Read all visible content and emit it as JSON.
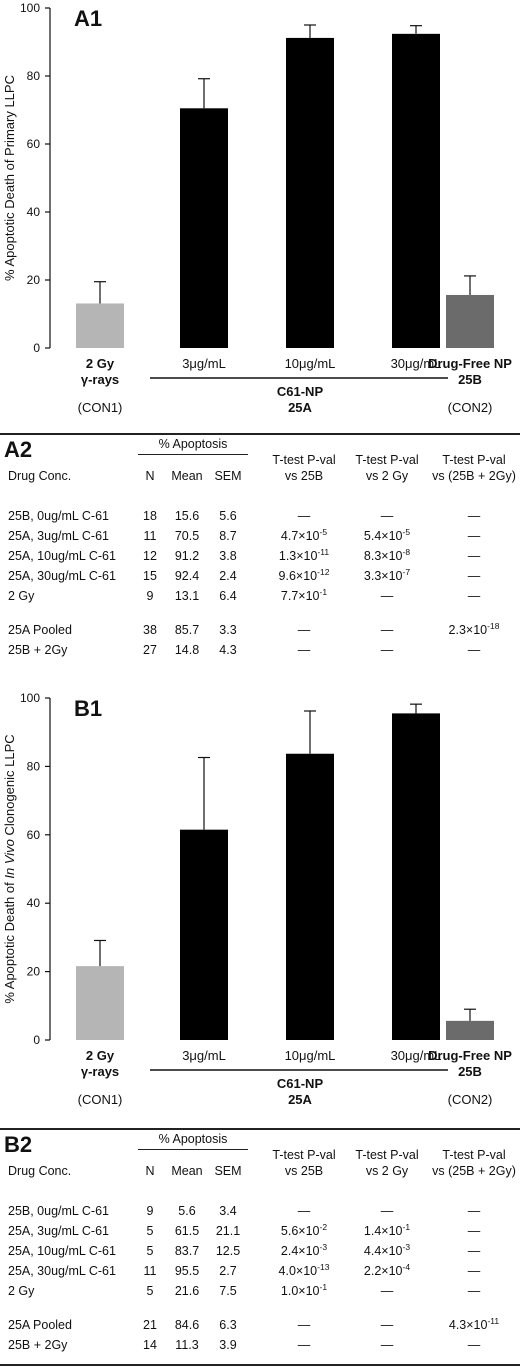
{
  "chart_data": [
    {
      "type": "bar",
      "panel_label": "A1",
      "ylabel": "% Apoptotic Death of Primary LLPC",
      "ylim": [
        0,
        100
      ],
      "yticks": [
        "0",
        "20",
        "40",
        "60",
        "80",
        "100"
      ],
      "categories": [
        "2 Gy γ-rays",
        "3μg/mL",
        "10μg/mL",
        "30μg/mL",
        "Drug-Free NP 25B"
      ],
      "values": [
        13.1,
        70.5,
        91.2,
        92.4,
        15.6
      ],
      "errors": [
        6.4,
        8.7,
        3.8,
        2.4,
        5.6
      ],
      "colors": [
        "#b5b5b5",
        "#000000",
        "#000000",
        "#000000",
        "#6b6b6b"
      ],
      "labels": {
        "left_bold_1": "2 Gy",
        "left_bold_2": "γ-rays",
        "left_sub": "(CON1)",
        "mid_1": "3μg/mL",
        "mid_2": "10μg/mL",
        "mid_3": "30μg/mL",
        "group_1": "C61-NP",
        "group_2": "25A",
        "right_bold_1": "Drug-Free NP",
        "right_bold_2": "25B",
        "right_sub": "(CON2)"
      }
    },
    {
      "type": "bar",
      "panel_label": "B1",
      "ylabel_pre": "% Apoptotic Death of ",
      "ylabel_italic": "In Vivo",
      "ylabel_post": " Clonogenic LLPC",
      "ylim": [
        0,
        100
      ],
      "yticks": [
        "0",
        "20",
        "40",
        "60",
        "80",
        "100"
      ],
      "categories": [
        "2 Gy γ-rays",
        "3μg/mL",
        "10μg/mL",
        "30μg/mL",
        "Drug-Free NP 25B"
      ],
      "values": [
        21.6,
        61.5,
        83.7,
        95.5,
        5.6
      ],
      "errors": [
        7.5,
        21.1,
        12.5,
        2.7,
        3.4
      ],
      "colors": [
        "#b5b5b5",
        "#000000",
        "#000000",
        "#000000",
        "#6b6b6b"
      ],
      "labels": {
        "left_bold_1": "2 Gy",
        "left_bold_2": "γ-rays",
        "left_sub": "(CON1)",
        "mid_1": "3μg/mL",
        "mid_2": "10μg/mL",
        "mid_3": "30μg/mL",
        "group_1": "C61-NP",
        "group_2": "25A",
        "right_bold_1": "Drug-Free NP",
        "right_bold_2": "25B",
        "right_sub": "(CON2)"
      }
    }
  ],
  "tables": [
    {
      "panel_label": "A2",
      "header": {
        "drug": "Drug Conc.",
        "apoptosis": "% Apoptosis",
        "n": "N",
        "mean": "Mean",
        "sem": "SEM",
        "t1a": "T-test P-val",
        "t1b": "vs 25B",
        "t2a": "T-test P-val",
        "t2b": "vs 2 Gy",
        "t3a": "T-test P-val",
        "t3b": "vs (25B + 2Gy)"
      },
      "rows": [
        {
          "drug": "25B, 0ug/mL C-61",
          "n": "18",
          "mean": "15.6",
          "sem": "5.6",
          "p1": "—",
          "p1e": "",
          "p2": "—",
          "p2e": "",
          "p3": "—",
          "p3e": ""
        },
        {
          "drug": "25A, 3ug/mL C-61",
          "n": "11",
          "mean": "70.5",
          "sem": "8.7",
          "p1": "4.7×10",
          "p1e": "-5",
          "p2": "5.4×10",
          "p2e": "-5",
          "p3": "—",
          "p3e": ""
        },
        {
          "drug": "25A, 10ug/mL C-61",
          "n": "12",
          "mean": "91.2",
          "sem": "3.8",
          "p1": "1.3×10",
          "p1e": "-11",
          "p2": "8.3×10",
          "p2e": "-8",
          "p3": "—",
          "p3e": ""
        },
        {
          "drug": "25A, 30ug/mL C-61",
          "n": "15",
          "mean": "92.4",
          "sem": "2.4",
          "p1": "9.6×10",
          "p1e": "-12",
          "p2": "3.3×10",
          "p2e": "-7",
          "p3": "—",
          "p3e": ""
        },
        {
          "drug": "2 Gy",
          "n": "9",
          "mean": "13.1",
          "sem": "6.4",
          "p1": "7.7×10",
          "p1e": "-1",
          "p2": "—",
          "p2e": "",
          "p3": "—",
          "p3e": ""
        },
        {
          "drug": "25A Pooled",
          "n": "38",
          "mean": "85.7",
          "sem": "3.3",
          "p1": "—",
          "p1e": "",
          "p2": "—",
          "p2e": "",
          "p3": "2.3×10",
          "p3e": "-18"
        },
        {
          "drug": "25B + 2Gy",
          "n": "27",
          "mean": "14.8",
          "sem": "4.3",
          "p1": "—",
          "p1e": "",
          "p2": "—",
          "p2e": "",
          "p3": "—",
          "p3e": ""
        }
      ]
    },
    {
      "panel_label": "B2",
      "header": {
        "drug": "Drug Conc.",
        "apoptosis": "% Apoptosis",
        "n": "N",
        "mean": "Mean",
        "sem": "SEM",
        "t1a": "T-test P-val",
        "t1b": "vs 25B",
        "t2a": "T-test P-val",
        "t2b": "vs 2 Gy",
        "t3a": "T-test P-val",
        "t3b": "vs (25B + 2Gy)"
      },
      "rows": [
        {
          "drug": "25B, 0ug/mL C-61",
          "n": "9",
          "mean": "5.6",
          "sem": "3.4",
          "p1": "—",
          "p1e": "",
          "p2": "—",
          "p2e": "",
          "p3": "—",
          "p3e": ""
        },
        {
          "drug": "25A, 3ug/mL C-61",
          "n": "5",
          "mean": "61.5",
          "sem": "21.1",
          "p1": "5.6×10",
          "p1e": "-2",
          "p2": "1.4×10",
          "p2e": "-1",
          "p3": "—",
          "p3e": ""
        },
        {
          "drug": "25A, 10ug/mL C-61",
          "n": "5",
          "mean": "83.7",
          "sem": "12.5",
          "p1": "2.4×10",
          "p1e": "-3",
          "p2": "4.4×10",
          "p2e": "-3",
          "p3": "—",
          "p3e": ""
        },
        {
          "drug": "25A, 30ug/mL C-61",
          "n": "11",
          "mean": "95.5",
          "sem": "2.7",
          "p1": "4.0×10",
          "p1e": "-13",
          "p2": "2.2×10",
          "p2e": "-4",
          "p3": "—",
          "p3e": ""
        },
        {
          "drug": "2 Gy",
          "n": "5",
          "mean": "21.6",
          "sem": "7.5",
          "p1": "1.0×10",
          "p1e": "-1",
          "p2": "—",
          "p2e": "",
          "p3": "—",
          "p3e": ""
        },
        {
          "drug": "25A Pooled",
          "n": "21",
          "mean": "84.6",
          "sem": "6.3",
          "p1": "—",
          "p1e": "",
          "p2": "—",
          "p2e": "",
          "p3": "4.3×10",
          "p3e": "-11"
        },
        {
          "drug": "25B + 2Gy",
          "n": "14",
          "mean": "11.3",
          "sem": "3.9",
          "p1": "—",
          "p1e": "",
          "p2": "—",
          "p2e": "",
          "p3": "—",
          "p3e": ""
        }
      ]
    }
  ]
}
